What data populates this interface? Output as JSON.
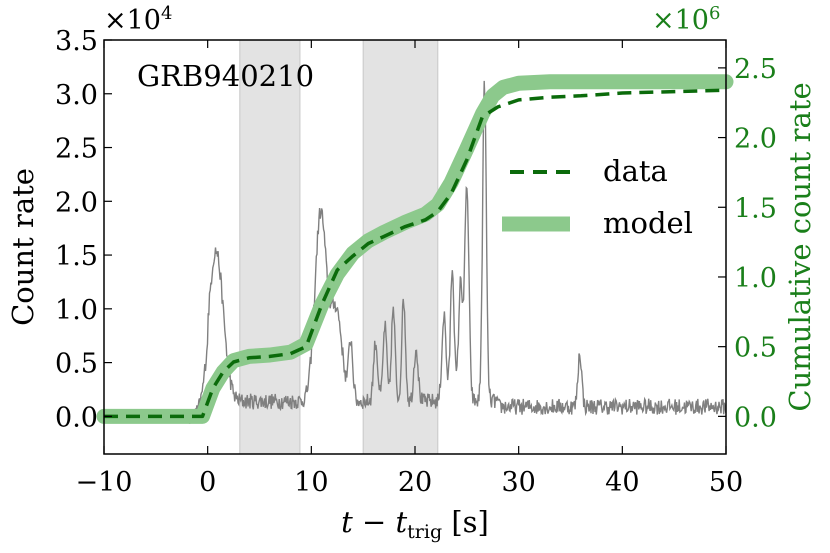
{
  "chart_data": {
    "type": "line",
    "title": "",
    "annotation": "GRB940210",
    "xlabel": {
      "t": "t",
      "minus": " − ",
      "t2": "t",
      "sub": "trig",
      "unit": " [s]"
    },
    "ylabel": "Count rate",
    "y2label": "Cumulative count rate",
    "xlim": [
      -10,
      50
    ],
    "ylim": [
      -3500,
      35000
    ],
    "y2lim": [
      -270000.0,
      2700000.0
    ],
    "xticks": [
      -10,
      0,
      10,
      20,
      30,
      40,
      50
    ],
    "xtick_labels": [
      "−10",
      "0",
      "10",
      "20",
      "30",
      "40",
      "50"
    ],
    "yticks": [
      0,
      5000,
      10000,
      15000,
      20000,
      25000,
      30000,
      35000
    ],
    "ytick_labels": [
      "0.0",
      "0.5",
      "1.0",
      "1.5",
      "2.0",
      "2.5",
      "3.0",
      "3.5"
    ],
    "y2ticks": [
      0,
      500000,
      1000000,
      1500000,
      2000000,
      2500000
    ],
    "y2tick_labels": [
      "0.0",
      "0.5",
      "1.0",
      "1.5",
      "2.0",
      "2.5"
    ],
    "y_multiplier": {
      "base": "×10",
      "exp": "4"
    },
    "y2_multiplier": {
      "base": "×10",
      "exp": "6"
    },
    "shaded_intervals": [
      [
        3.1,
        8.9
      ],
      [
        15.0,
        22.2
      ]
    ],
    "legend": {
      "placement": "right",
      "entries": [
        {
          "label": "data",
          "style": "dashed",
          "color": "#0b6b0b"
        },
        {
          "label": "model",
          "style": "band",
          "color": "#8cc98c"
        }
      ]
    },
    "colors": {
      "lightcurve": "#808080",
      "data": "#0b6b0b",
      "model": "#8cc98c",
      "shade": "#e3e3e3",
      "right_axis": "#1a7f1a"
    },
    "lightcurve_peaks": [
      {
        "t": 0.8,
        "amp": 14000,
        "w": 0.7
      },
      {
        "t": 10.9,
        "amp": 17500,
        "w": 0.55
      },
      {
        "t": 12.4,
        "amp": 8500,
        "w": 0.55
      },
      {
        "t": 13.8,
        "amp": 5500,
        "w": 0.2
      },
      {
        "t": 16.2,
        "amp": 5500,
        "w": 0.2
      },
      {
        "t": 17.1,
        "amp": 7000,
        "w": 0.18
      },
      {
        "t": 17.9,
        "amp": 8500,
        "w": 0.18
      },
      {
        "t": 18.9,
        "amp": 9500,
        "w": 0.18
      },
      {
        "t": 20.1,
        "amp": 5000,
        "w": 0.2
      },
      {
        "t": 22.8,
        "amp": 8000,
        "w": 0.2
      },
      {
        "t": 23.6,
        "amp": 12500,
        "w": 0.18
      },
      {
        "t": 24.4,
        "amp": 11000,
        "w": 0.2
      },
      {
        "t": 25.0,
        "amp": 20000,
        "w": 0.2
      },
      {
        "t": 26.7,
        "amp": 29500,
        "w": 0.18
      },
      {
        "t": 35.9,
        "amp": 5000,
        "w": 0.18
      }
    ],
    "data_series": {
      "name": "data",
      "x": [
        -10,
        -0.5,
        0.5,
        1.5,
        2.5,
        4,
        6,
        8,
        9.5,
        11,
        12.5,
        14,
        15.5,
        17,
        19,
        21,
        22.2,
        23.5,
        25,
        26.5,
        28,
        30,
        33,
        36,
        40,
        45,
        50
      ],
      "y": [
        0,
        0,
        200000.0,
        320000.0,
        390000.0,
        420000.0,
        430000.0,
        450000.0,
        500000.0,
        800000.0,
        1050000.0,
        1150000.0,
        1240000.0,
        1290000.0,
        1360000.0,
        1410000.0,
        1470000.0,
        1600000.0,
        1840000.0,
        2150000.0,
        2220000.0,
        2270000.0,
        2290000.0,
        2300000.0,
        2320000.0,
        2330000.0,
        2340000.0
      ]
    },
    "model_series": {
      "name": "model",
      "x": [
        -10,
        -0.5,
        0.5,
        1.5,
        2.5,
        4,
        6,
        8,
        9.5,
        11,
        12.5,
        14,
        15.5,
        17,
        19,
        21,
        22.2,
        23.5,
        25,
        26.5,
        27.5,
        28.5,
        30,
        33,
        40,
        50
      ],
      "y": [
        0,
        0,
        200000.0,
        320000.0,
        400000.0,
        430000.0,
        440000.0,
        460000.0,
        520000.0,
        800000.0,
        1020000.0,
        1170000.0,
        1260000.0,
        1320000.0,
        1390000.0,
        1450000.0,
        1520000.0,
        1680000.0,
        1920000.0,
        2170000.0,
        2300000.0,
        2360000.0,
        2390000.0,
        2400000.0,
        2400000.0,
        2400000.0
      ]
    }
  }
}
